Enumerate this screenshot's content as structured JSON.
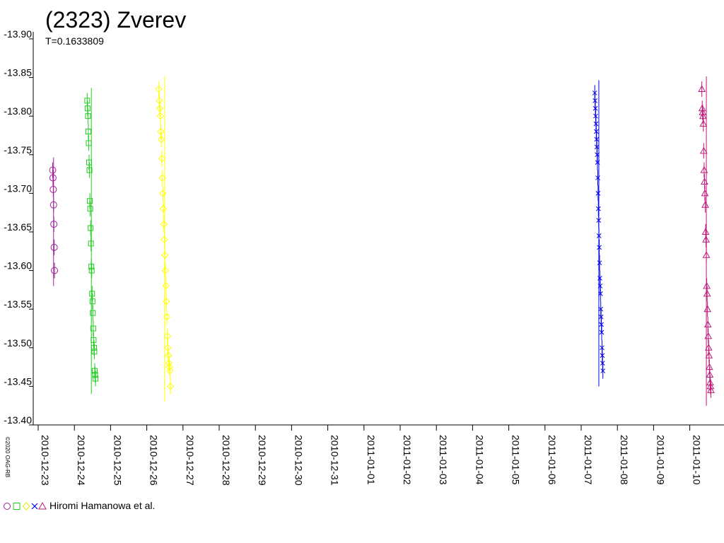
{
  "chart_data": {
    "type": "scatter",
    "title": "(2323) Zverev",
    "subtitle": "T=0.1633809",
    "xlabel": "",
    "ylabel": "",
    "ylim": [
      -13.4,
      -13.9
    ],
    "y_ticks": [
      "-13.90",
      "-13.85",
      "-13.80",
      "-13.75",
      "-13.70",
      "-13.65",
      "-13.60",
      "-13.55",
      "-13.50",
      "-13.45",
      "-13.40"
    ],
    "x_ticks": [
      "2010-12-23",
      "2010-12-24",
      "2010-12-25",
      "2010-12-26",
      "2010-12-27",
      "2010-12-28",
      "2010-12-29",
      "2010-12-30",
      "2010-12-31",
      "2011-01-01",
      "2011-01-02",
      "2011-01-03",
      "2011-01-04",
      "2011-01-05",
      "2011-01-06",
      "2011-01-07",
      "2011-01-08",
      "2011-01-09",
      "2011-01-10"
    ],
    "series": [
      {
        "marker": "circle",
        "color": "#a0209a",
        "x": [
          "2010-12-23 09:36",
          "2010-12-23 09:48",
          "2010-12-23 10:00",
          "2010-12-23 10:12",
          "2010-12-23 10:24",
          "2010-12-23 10:36",
          "2010-12-23 10:48"
        ],
        "y": [
          -13.73,
          -13.72,
          -13.705,
          -13.685,
          -13.66,
          -13.63,
          -13.6
        ]
      },
      {
        "marker": "square",
        "color": "#22cc22",
        "x": [
          "2010-12-24 08:30",
          "2010-12-24 08:45",
          "2010-12-24 09:00",
          "2010-12-24 09:15",
          "2010-12-24 09:30",
          "2010-12-24 09:45",
          "2010-12-24 10:00",
          "2010-12-24 10:15",
          "2010-12-24 10:30",
          "2010-12-24 10:45",
          "2010-12-24 11:00",
          "2010-12-24 11:15",
          "2010-12-24 11:30",
          "2010-12-24 11:45",
          "2010-12-24 12:00",
          "2010-12-24 12:15",
          "2010-12-24 12:30",
          "2010-12-24 12:45",
          "2010-12-24 13:00",
          "2010-12-24 13:15",
          "2010-12-24 13:30",
          "2010-12-24 13:45",
          "2010-12-24 14:00"
        ],
        "y": [
          -13.82,
          -13.81,
          -13.8,
          -13.78,
          -13.765,
          -13.74,
          -13.73,
          -13.69,
          -13.68,
          -13.655,
          -13.635,
          -13.605,
          -13.6,
          -13.57,
          -13.56,
          -13.545,
          -13.525,
          -13.51,
          -13.5,
          -13.495,
          -13.47,
          -13.465,
          -13.46
        ]
      },
      {
        "marker": "diamond",
        "color": "#ffff00",
        "x": [
          "2010-12-26 08:00",
          "2010-12-26 08:20",
          "2010-12-26 08:40",
          "2010-12-26 09:00",
          "2010-12-26 09:20",
          "2010-12-26 09:40",
          "2010-12-26 10:00",
          "2010-12-26 10:20",
          "2010-12-26 10:40",
          "2010-12-26 11:00",
          "2010-12-26 11:20",
          "2010-12-26 11:40",
          "2010-12-26 12:00",
          "2010-12-26 12:20",
          "2010-12-26 12:40",
          "2010-12-26 13:00",
          "2010-12-26 13:20",
          "2010-12-26 13:40",
          "2010-12-26 14:00",
          "2010-12-26 14:20",
          "2010-12-26 14:40",
          "2010-12-26 15:00",
          "2010-12-26 15:20",
          "2010-12-26 15:40"
        ],
        "y": [
          -13.835,
          -13.82,
          -13.81,
          -13.8,
          -13.78,
          -13.77,
          -13.745,
          -13.72,
          -13.7,
          -13.68,
          -13.66,
          -13.64,
          -13.62,
          -13.6,
          -13.58,
          -13.56,
          -13.54,
          -13.515,
          -13.5,
          -13.49,
          -13.48,
          -13.475,
          -13.47,
          -13.45
        ]
      },
      {
        "marker": "cross",
        "color": "#0000ee",
        "x": [
          "2011-01-07 09:00",
          "2011-01-07 09:12",
          "2011-01-07 09:24",
          "2011-01-07 09:36",
          "2011-01-07 09:48",
          "2011-01-07 10:00",
          "2011-01-07 10:12",
          "2011-01-07 10:24",
          "2011-01-07 10:36",
          "2011-01-07 10:48",
          "2011-01-07 11:00",
          "2011-01-07 11:12",
          "2011-01-07 11:24",
          "2011-01-07 11:36",
          "2011-01-07 11:48",
          "2011-01-07 12:00",
          "2011-01-07 12:12",
          "2011-01-07 12:24",
          "2011-01-07 12:36",
          "2011-01-07 12:48",
          "2011-01-07 13:00",
          "2011-01-07 13:12",
          "2011-01-07 13:24",
          "2011-01-07 13:36",
          "2011-01-07 13:48",
          "2011-01-07 14:00",
          "2011-01-07 14:12",
          "2011-01-07 14:24"
        ],
        "y": [
          -13.83,
          -13.82,
          -13.81,
          -13.8,
          -13.79,
          -13.78,
          -13.77,
          -13.76,
          -13.75,
          -13.74,
          -13.72,
          -13.7,
          -13.68,
          -13.665,
          -13.645,
          -13.63,
          -13.61,
          -13.59,
          -13.58,
          -13.57,
          -13.55,
          -13.54,
          -13.53,
          -13.52,
          -13.5,
          -13.49,
          -13.48,
          -13.47
        ]
      },
      {
        "marker": "triangle",
        "color": "#c0187a",
        "x": [
          "2011-01-10 08:00",
          "2011-01-10 08:15",
          "2011-01-10 08:30",
          "2011-01-10 08:45",
          "2011-01-10 09:00",
          "2011-01-10 09:15",
          "2011-01-10 09:30",
          "2011-01-10 09:45",
          "2011-01-10 10:00",
          "2011-01-10 10:15",
          "2011-01-10 10:30",
          "2011-01-10 10:45",
          "2011-01-10 11:00",
          "2011-01-10 11:15",
          "2011-01-10 11:30",
          "2011-01-10 11:45",
          "2011-01-10 12:00",
          "2011-01-10 12:15",
          "2011-01-10 12:30",
          "2011-01-10 12:45",
          "2011-01-10 13:00",
          "2011-01-10 13:15",
          "2011-01-10 13:30",
          "2011-01-10 13:45",
          "2011-01-10 14:00"
        ],
        "y": [
          -13.835,
          -13.81,
          -13.805,
          -13.8,
          -13.79,
          -13.755,
          -13.73,
          -13.715,
          -13.7,
          -13.685,
          -13.65,
          -13.64,
          -13.62,
          -13.58,
          -13.57,
          -13.55,
          -13.53,
          -13.515,
          -13.5,
          -13.49,
          -13.475,
          -13.465,
          -13.455,
          -13.45,
          -13.445
        ]
      }
    ]
  },
  "legend": {
    "label": "Hiromi Hamanowa et al."
  },
  "credit": "©2020 OAG-RB"
}
